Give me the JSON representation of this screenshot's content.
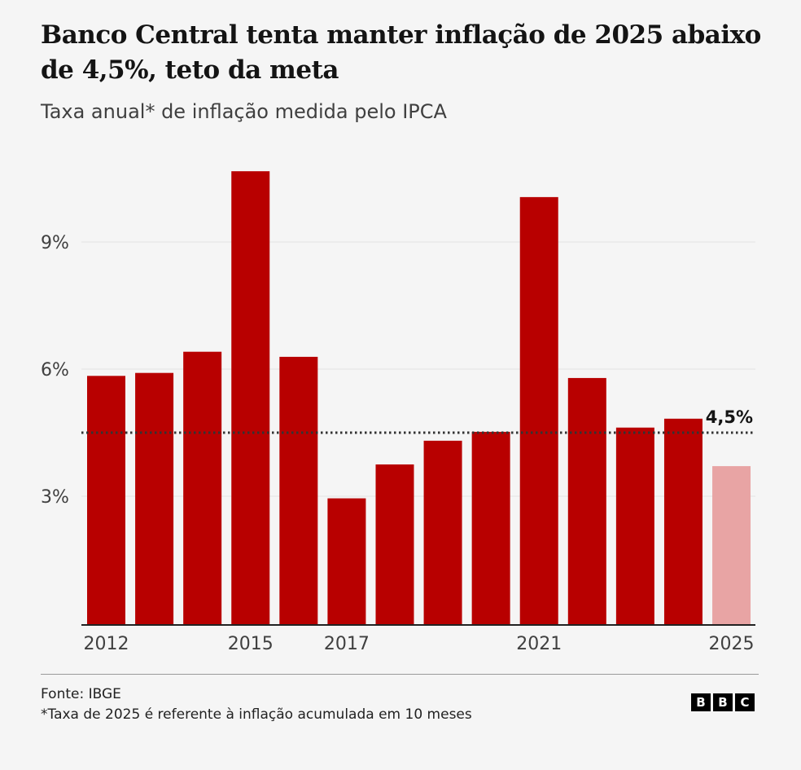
{
  "header": {
    "title": "Banco Central tenta manter inflação de 2025 abaixo de 4,5%, teto da meta",
    "subtitle": "Taxa anual* de inflação medida pelo IPCA"
  },
  "chart_data": {
    "type": "bar",
    "title": "Banco Central tenta manter inflação de 2025 abaixo de 4,5%, teto da meta",
    "subtitle": "Taxa anual* de inflação medida pelo IPCA",
    "categories": [
      "2012",
      "2013",
      "2014",
      "2015",
      "2016",
      "2017",
      "2018",
      "2019",
      "2020",
      "2021",
      "2022",
      "2023",
      "2024",
      "2025"
    ],
    "values": [
      5.84,
      5.91,
      6.41,
      10.67,
      6.29,
      2.95,
      3.75,
      4.31,
      4.52,
      10.06,
      5.79,
      4.62,
      4.83,
      3.71
    ],
    "ylim": [
      0,
      11.5
    ],
    "yticks": [
      {
        "v": 3,
        "label": "3%"
      },
      {
        "v": 6,
        "label": "6%"
      },
      {
        "v": 9,
        "label": "9%"
      }
    ],
    "xtick_labels": [
      "2012",
      "2015",
      "2017",
      "2021",
      "2025"
    ],
    "reference_line": {
      "value": 4.5,
      "label": "4,5%"
    },
    "grid": true,
    "colors": {
      "bar": "#b80000",
      "partial_bar": "#e8a4a4",
      "reference": "#333333"
    },
    "partial_categories": [
      "2025"
    ]
  },
  "footer": {
    "source": "Fonte: IBGE",
    "note": "*Taxa de 2025 é referente à inflação acumulada em 10 meses",
    "logo": [
      "B",
      "B",
      "C"
    ]
  }
}
